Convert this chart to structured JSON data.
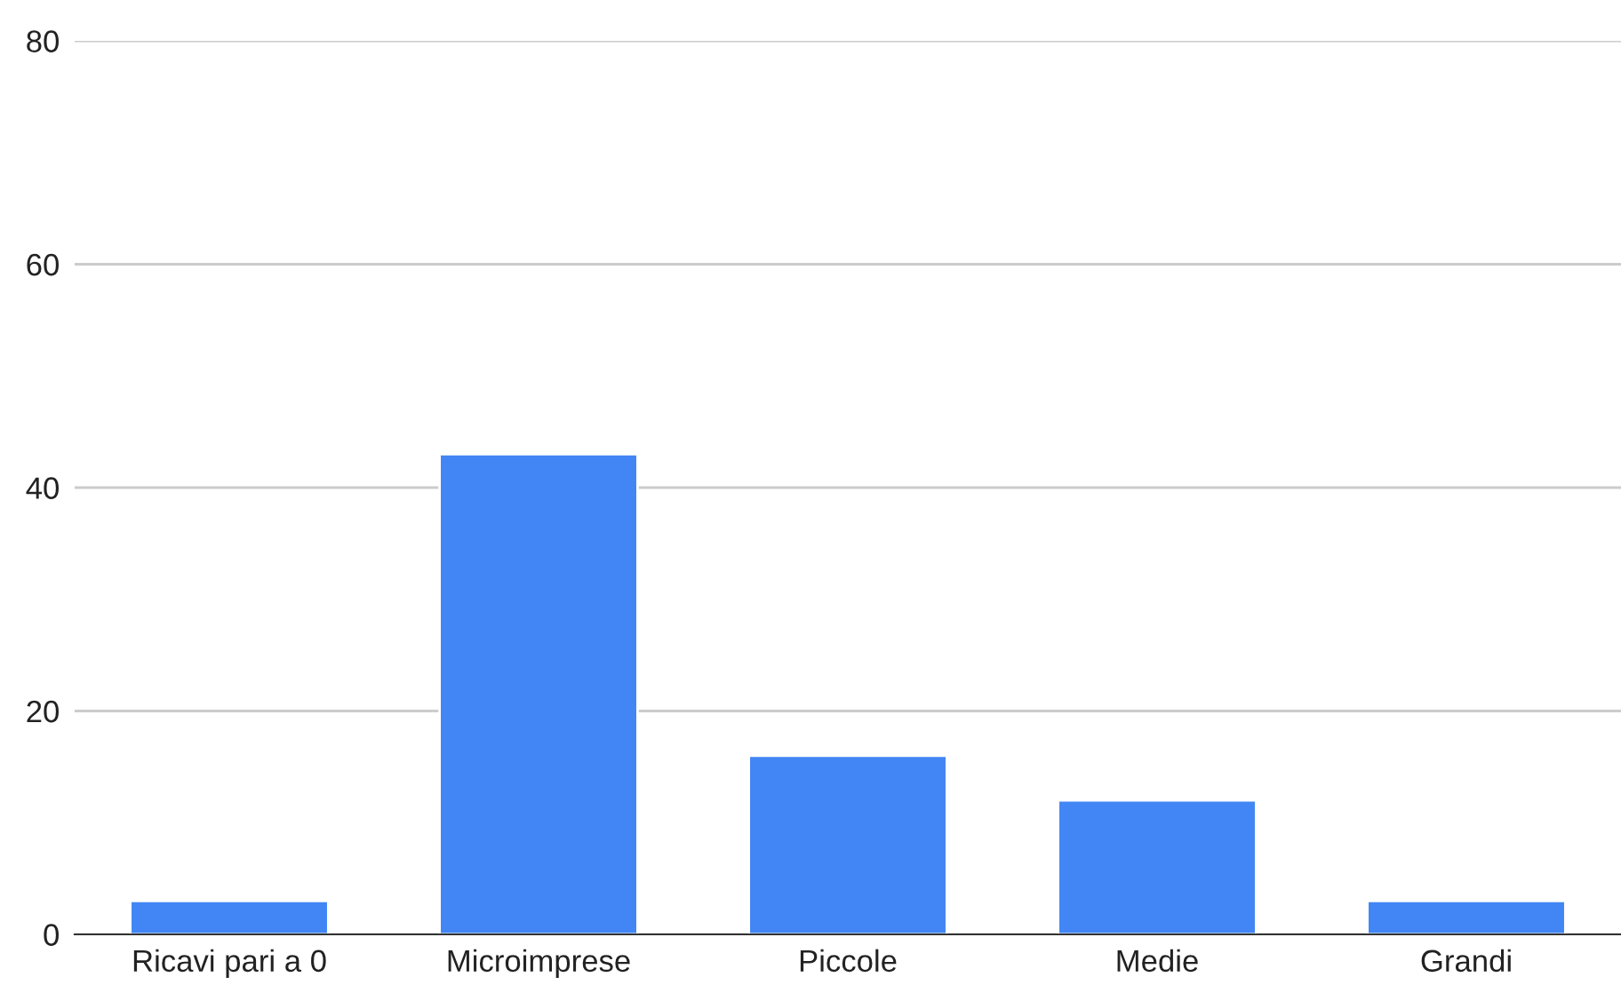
{
  "chart_data": {
    "type": "bar",
    "categories": [
      "Ricavi pari a 0",
      "Microimprese",
      "Piccole",
      "Medie",
      "Grandi"
    ],
    "values": [
      3,
      43,
      16,
      12,
      3
    ],
    "color": "#4285f4",
    "ylim": [
      0,
      80
    ],
    "yticks": [
      0,
      20,
      40,
      60,
      80
    ],
    "grid": "y",
    "legend": false
  }
}
